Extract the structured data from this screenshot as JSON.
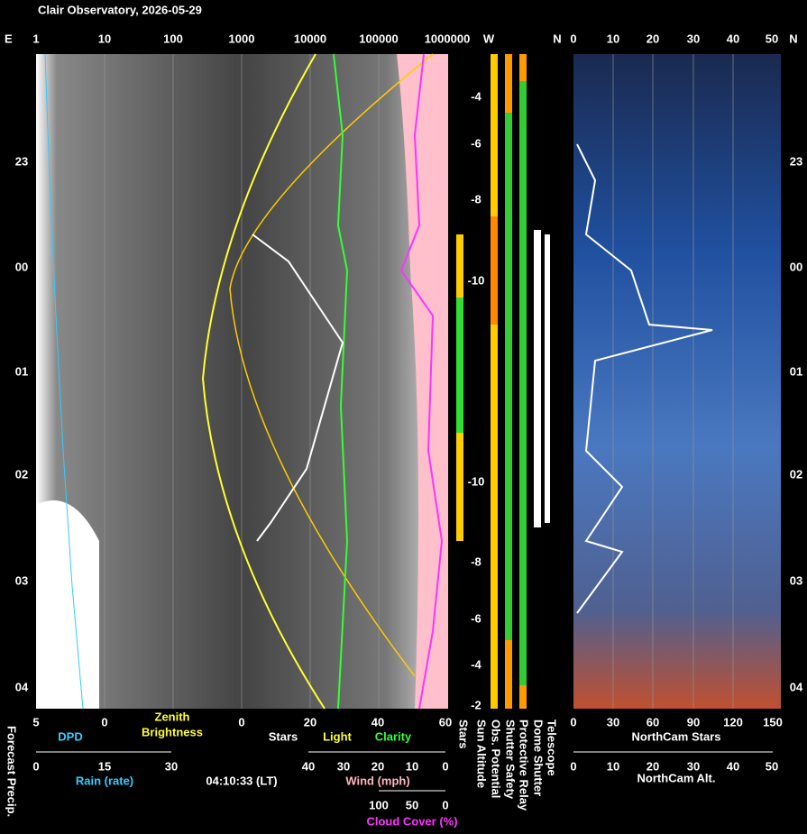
{
  "header": {
    "title": "Clair Observatory, 2026-05-29"
  },
  "top_axis": {
    "left_dir": "E",
    "brightness_ticks": [
      "1",
      "10",
      "100",
      "1000",
      "10000",
      "100000",
      "1000000"
    ],
    "w_label": "W",
    "n_label": "N",
    "northcam_ticks": [
      "0",
      "10",
      "20",
      "30",
      "40",
      "50"
    ],
    "right_dir": "N"
  },
  "time_labels": [
    "23",
    "00",
    "01",
    "02",
    "03",
    "04"
  ],
  "sun_altitude_labels": [
    "-4",
    "-6",
    "-8",
    "-10",
    "-10",
    "-8",
    "-6",
    "-4",
    "-2"
  ],
  "bottom": {
    "row1_ticks": [
      "5",
      "0",
      "0",
      "20",
      "40",
      "60"
    ],
    "dpd": "DPD",
    "zenith": "Zenith",
    "brightness": "Brightness",
    "stars": "Stars",
    "light": "Light",
    "clarity": "Clarity",
    "rain_ticks": [
      "0",
      "15",
      "30"
    ],
    "rain": "Rain (rate)",
    "time": "04:10:33 (LT)",
    "wind_ticks": [
      "40",
      "30",
      "20",
      "10",
      "0"
    ],
    "wind": "Wind (mph)",
    "cloud_ticks": [
      "100",
      "50",
      "0"
    ],
    "cloud": "Cloud Cover (%)"
  },
  "vertical_labels": [
    "Forecast Precip.",
    "Stars",
    "Sun Altitude",
    "Obs. Potential",
    "Shutter Safety",
    "Protective Relay",
    "Dome Shutter",
    "Telescope"
  ],
  "northcam": {
    "stars_ticks": [
      "0",
      "30",
      "60",
      "90",
      "120",
      "150"
    ],
    "stars_label": "NorthCam Stars",
    "alt_ticks": [
      "0",
      "10",
      "20",
      "30",
      "40",
      "50"
    ],
    "alt_label": "NorthCam Alt."
  }
}
